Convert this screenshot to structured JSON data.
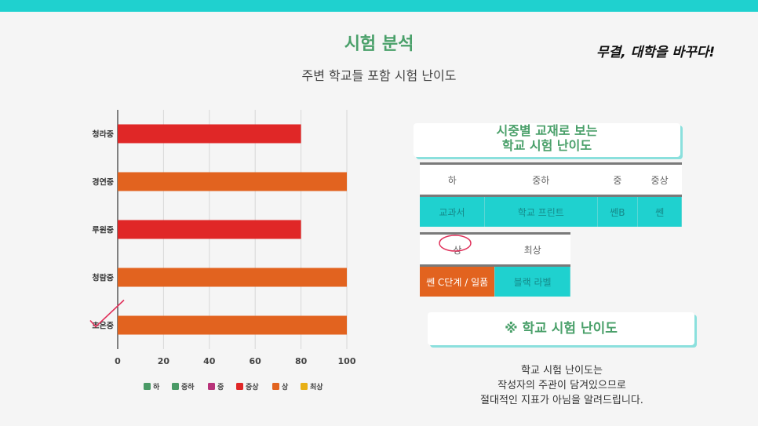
{
  "header": {
    "title": "시험 분석",
    "subtitle": "주변 학교들 포함 시험 난이도",
    "slogan": "무결, 대학을 바꾸다!"
  },
  "colors": {
    "accent_teal": "#1fd1cf",
    "title_green": "#4aa06a",
    "orange": "#e2631f",
    "red": "#e02727"
  },
  "chart_data": {
    "type": "bar",
    "orientation": "horizontal",
    "categories": [
      "청라중",
      "경연중",
      "루원중",
      "청람중",
      "초은중"
    ],
    "values": [
      80,
      100,
      80,
      100,
      100
    ],
    "bar_levels": [
      "중상",
      "상",
      "중상",
      "상",
      "상"
    ],
    "xlim": [
      0,
      100
    ],
    "xticks": [
      0,
      20,
      40,
      60,
      80,
      100
    ],
    "grid": true,
    "legend_position": "bottom",
    "legend": [
      {
        "name": "하",
        "color": "#4a9a66"
      },
      {
        "name": "중하",
        "color": "#4a9a66"
      },
      {
        "name": "중",
        "color": "#b8337a"
      },
      {
        "name": "중상",
        "color": "#e02727"
      },
      {
        "name": "상",
        "color": "#e2631f"
      },
      {
        "name": "최상",
        "color": "#e8b016"
      }
    ],
    "checked_category": "초은중"
  },
  "textbook_card": {
    "line1": "시중별 교재로 보는",
    "line2": "학교 시험 난이도"
  },
  "table1": {
    "levels": [
      "하",
      "중하",
      "중",
      "중상"
    ],
    "books": [
      "교과서",
      "학교 프린트",
      "쎈B",
      "쎈"
    ]
  },
  "table2": {
    "levels": [
      "상",
      "최상"
    ],
    "books": [
      "쎈 C단계 / 일품",
      "블랙 라벨"
    ]
  },
  "difficulty_card": {
    "title": "※ 학교 시험 난이도"
  },
  "note": {
    "line1": "학교 시험 난이도는",
    "line2": "작성자의 주관이 담겨있으므로",
    "line3": "절대적인 지표가 아님을 알려드립니다."
  }
}
